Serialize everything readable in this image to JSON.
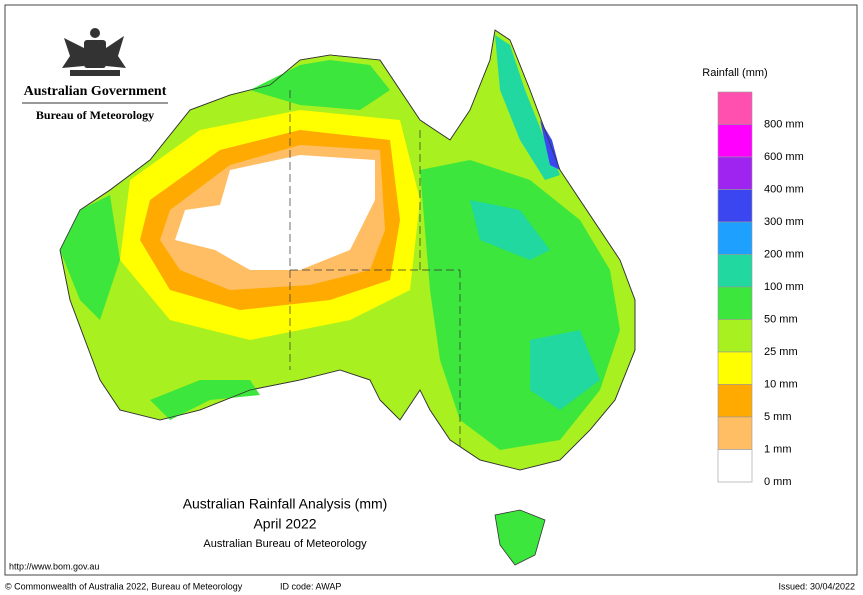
{
  "header": {
    "agency": "Australian Government",
    "bureau": "Bureau of Meteorology"
  },
  "map": {
    "title": "Australian Rainfall Analysis (mm)",
    "period": "April 2022",
    "source": "Australian Bureau of Meteorology"
  },
  "legend": {
    "title": "Rainfall (mm)",
    "entries": [
      {
        "label": "800 mm",
        "color": "#ff50b0"
      },
      {
        "label": "600 mm",
        "color": "#ff00ff"
      },
      {
        "label": "400 mm",
        "color": "#a024f0"
      },
      {
        "label": "300 mm",
        "color": "#3c46f0"
      },
      {
        "label": "200 mm",
        "color": "#1ea0ff"
      },
      {
        "label": "100 mm",
        "color": "#20d8a0"
      },
      {
        "label": "50 mm",
        "color": "#3ce63c"
      },
      {
        "label": "25 mm",
        "color": "#a8f020"
      },
      {
        "label": "10 mm",
        "color": "#ffff00"
      },
      {
        "label": "5 mm",
        "color": "#ffaa00"
      },
      {
        "label": "1 mm",
        "color": "#ffbe64"
      },
      {
        "label": "0 mm",
        "color": "#ffffff"
      }
    ]
  },
  "footer": {
    "url": "http://www.bom.gov.au",
    "copyright": "© Commonwealth of Australia 2022, Bureau of Meteorology",
    "id_code": "ID code: AWAP",
    "issued": "Issued: 30/04/2022"
  }
}
